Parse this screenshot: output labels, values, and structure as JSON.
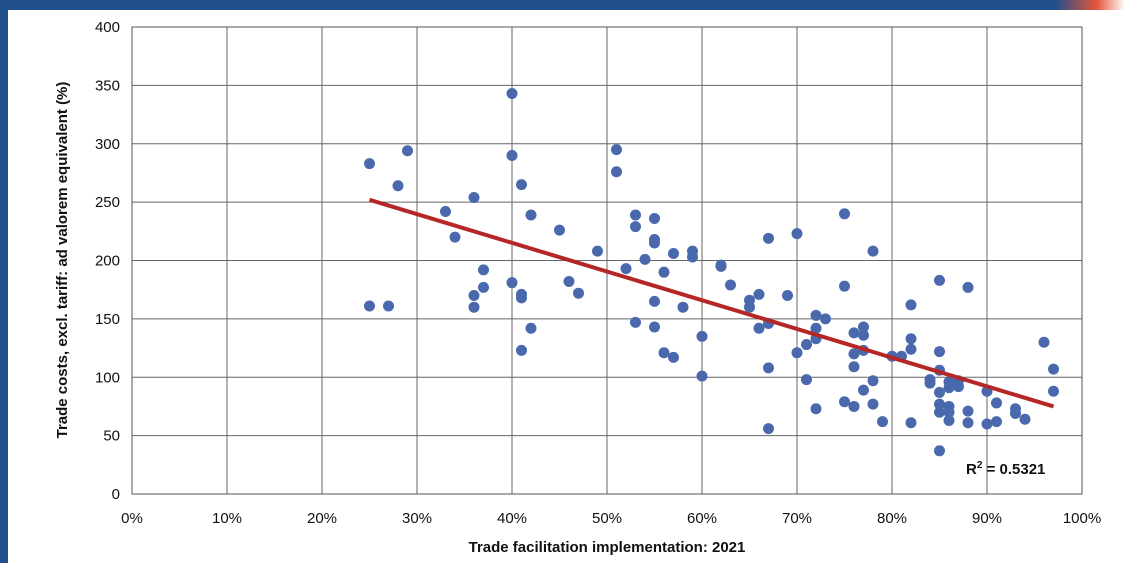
{
  "chart_data": {
    "type": "scatter",
    "xlabel": "Trade facilitation implementation: 2021",
    "ylabel": "Trade costs, excl. tariff: ad valorem equivalent (%)",
    "xlim": [
      0,
      100
    ],
    "ylim": [
      0,
      400
    ],
    "x_ticks": [
      "0%",
      "10%",
      "20%",
      "30%",
      "40%",
      "50%",
      "60%",
      "70%",
      "80%",
      "90%",
      "100%"
    ],
    "y_ticks": [
      "0",
      "50",
      "100",
      "150",
      "200",
      "250",
      "300",
      "350",
      "400"
    ],
    "grid": true,
    "annotation": {
      "prefix": "R",
      "superscript": "2",
      "suffix": " = 0.5321"
    },
    "trendline": {
      "x": [
        25,
        97
      ],
      "y": [
        252,
        75
      ]
    },
    "colors": {
      "points": "#4a69ad",
      "trendline": "#b52727",
      "frame": "#1f4e8c"
    },
    "points": [
      [
        25,
        283
      ],
      [
        25,
        161
      ],
      [
        27,
        161
      ],
      [
        28,
        264
      ],
      [
        29,
        294
      ],
      [
        33,
        242
      ],
      [
        34,
        220
      ],
      [
        36,
        254
      ],
      [
        36,
        170
      ],
      [
        36,
        160
      ],
      [
        37,
        177
      ],
      [
        37,
        192
      ],
      [
        40,
        343
      ],
      [
        40,
        290
      ],
      [
        40,
        181
      ],
      [
        41,
        265
      ],
      [
        41,
        171
      ],
      [
        41,
        168
      ],
      [
        41,
        123
      ],
      [
        42,
        239
      ],
      [
        42,
        142
      ],
      [
        45,
        226
      ],
      [
        46,
        182
      ],
      [
        47,
        172
      ],
      [
        49,
        208
      ],
      [
        51,
        295
      ],
      [
        51,
        276
      ],
      [
        52,
        193
      ],
      [
        53,
        239
      ],
      [
        53,
        229
      ],
      [
        53,
        147
      ],
      [
        54,
        201
      ],
      [
        55,
        236
      ],
      [
        55,
        218
      ],
      [
        55,
        215
      ],
      [
        55,
        165
      ],
      [
        55,
        143
      ],
      [
        56,
        190
      ],
      [
        56,
        121
      ],
      [
        57,
        206
      ],
      [
        57,
        117
      ],
      [
        58,
        160
      ],
      [
        59,
        208
      ],
      [
        59,
        203
      ],
      [
        60,
        135
      ],
      [
        60,
        101
      ],
      [
        62,
        196
      ],
      [
        62,
        195
      ],
      [
        63,
        179
      ],
      [
        65,
        166
      ],
      [
        65,
        160
      ],
      [
        66,
        171
      ],
      [
        66,
        142
      ],
      [
        67,
        56
      ],
      [
        67,
        219
      ],
      [
        67,
        146
      ],
      [
        67,
        108
      ],
      [
        69,
        170
      ],
      [
        70,
        223
      ],
      [
        70,
        121
      ],
      [
        71,
        128
      ],
      [
        71,
        98
      ],
      [
        72,
        153
      ],
      [
        72,
        142
      ],
      [
        72,
        133
      ],
      [
        72,
        73
      ],
      [
        73,
        150
      ],
      [
        75,
        240
      ],
      [
        75,
        178
      ],
      [
        75,
        79
      ],
      [
        76,
        138
      ],
      [
        76,
        120
      ],
      [
        76,
        109
      ],
      [
        76,
        75
      ],
      [
        77,
        143
      ],
      [
        77,
        136
      ],
      [
        77,
        123
      ],
      [
        77,
        89
      ],
      [
        78,
        208
      ],
      [
        78,
        97
      ],
      [
        78,
        77
      ],
      [
        79,
        62
      ],
      [
        80,
        118
      ],
      [
        81,
        118
      ],
      [
        82,
        162
      ],
      [
        82,
        133
      ],
      [
        82,
        124
      ],
      [
        82,
        61
      ],
      [
        84,
        98
      ],
      [
        84,
        95
      ],
      [
        85,
        183
      ],
      [
        85,
        122
      ],
      [
        85,
        106
      ],
      [
        85,
        87
      ],
      [
        85,
        77
      ],
      [
        85,
        70
      ],
      [
        85,
        37
      ],
      [
        86,
        96
      ],
      [
        86,
        91
      ],
      [
        86,
        75
      ],
      [
        86,
        70
      ],
      [
        86,
        63
      ],
      [
        87,
        97
      ],
      [
        87,
        92
      ],
      [
        88,
        177
      ],
      [
        88,
        71
      ],
      [
        88,
        61
      ],
      [
        90,
        88
      ],
      [
        90,
        60
      ],
      [
        91,
        78
      ],
      [
        91,
        62
      ],
      [
        93,
        73
      ],
      [
        93,
        69
      ],
      [
        94,
        64
      ],
      [
        96,
        130
      ],
      [
        97,
        107
      ],
      [
        97,
        88
      ]
    ]
  }
}
